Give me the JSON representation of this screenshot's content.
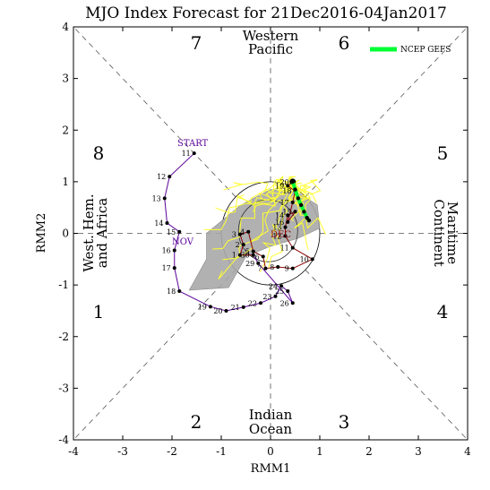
{
  "title": "MJO Index Forecast for 21Dec2016-04Jan2017",
  "xlabel": "RMM1",
  "ylabel": "RMM2",
  "phase_numbers": [
    "1",
    "2",
    "3",
    "4",
    "5",
    "6",
    "7",
    "8"
  ],
  "regions": {
    "top_line1": "Western",
    "top_line2": "Pacific",
    "bottom_line1": "Indian",
    "bottom_line2": "Ocean",
    "left_line1": "West. Hem.",
    "left_line2": "and Africa",
    "right_line1": "Maritime",
    "right_line2": "Continent"
  },
  "legend": {
    "label": "NCEP GEFS",
    "color": "#00ff33"
  },
  "month_labels": {
    "start": "START",
    "nov": "NOV",
    "dec": "DEC"
  },
  "colors": {
    "obs_nov": "#5a0099",
    "obs_dec": "#8b0000",
    "ensemble": "#ffff33",
    "spread": "#a9a9a9",
    "mean": "#00ff33"
  },
  "chart_data": {
    "type": "scatter",
    "xlim": [
      -4,
      4
    ],
    "ylim": [
      -4,
      4
    ],
    "xticks": [
      "-4",
      "-3",
      "-2",
      "-1",
      "0",
      "1",
      "2",
      "3",
      "4"
    ],
    "yticks": [
      "-4",
      "-3",
      "-2",
      "-1",
      "0",
      "1",
      "2",
      "3",
      "4"
    ],
    "unit_circle_radius": 1,
    "observed": [
      {
        "day": "11",
        "x": -1.55,
        "y": 1.55,
        "m": "nov"
      },
      {
        "day": "12",
        "x": -2.05,
        "y": 1.1,
        "m": "nov"
      },
      {
        "day": "13",
        "x": -2.15,
        "y": 0.68,
        "m": "nov"
      },
      {
        "day": "14",
        "x": -2.1,
        "y": 0.2,
        "m": "nov"
      },
      {
        "day": "15",
        "x": -1.85,
        "y": 0.03,
        "m": "nov"
      },
      {
        "day": "16",
        "x": -1.95,
        "y": -0.33,
        "m": "nov"
      },
      {
        "day": "17",
        "x": -1.95,
        "y": -0.67,
        "m": "nov"
      },
      {
        "day": "18",
        "x": -1.85,
        "y": -1.12,
        "m": "nov"
      },
      {
        "day": "19",
        "x": -1.22,
        "y": -1.42,
        "m": "nov"
      },
      {
        "day": "20",
        "x": -0.9,
        "y": -1.5,
        "m": "nov"
      },
      {
        "day": "21",
        "x": -0.55,
        "y": -1.43,
        "m": "nov"
      },
      {
        "day": "22",
        "x": -0.2,
        "y": -1.35,
        "m": "nov"
      },
      {
        "day": "23",
        "x": 0.1,
        "y": -1.22,
        "m": "nov"
      },
      {
        "day": "24",
        "x": 0.22,
        "y": -1.02,
        "m": "nov"
      },
      {
        "day": "25",
        "x": 0.35,
        "y": -1.12,
        "m": "nov"
      },
      {
        "day": "26",
        "x": 0.45,
        "y": -1.35,
        "m": "nov"
      },
      {
        "day": "29",
        "x": -0.25,
        "y": -0.58,
        "m": "nov"
      },
      {
        "day": "30",
        "x": -0.35,
        "y": -0.42,
        "m": "nov"
      },
      {
        "day": "1",
        "x": -0.62,
        "y": -0.42,
        "m": "dec"
      },
      {
        "day": "2",
        "x": -0.55,
        "y": -0.22,
        "m": "dec"
      },
      {
        "day": "3",
        "x": -0.62,
        "y": -0.02,
        "m": "dec"
      },
      {
        "day": "4",
        "x": -0.45,
        "y": 0.03,
        "m": "dec"
      },
      {
        "day": "5",
        "x": -0.35,
        "y": -0.35,
        "m": "dec"
      },
      {
        "day": "6",
        "x": -0.15,
        "y": -0.45,
        "m": "dec"
      },
      {
        "day": "7",
        "x": -0.1,
        "y": -0.68,
        "m": "dec"
      },
      {
        "day": "8",
        "x": 0.15,
        "y": -0.65,
        "m": "dec"
      },
      {
        "day": "9",
        "x": 0.45,
        "y": -0.68,
        "m": "dec"
      },
      {
        "day": "10",
        "x": 0.85,
        "y": -0.5,
        "m": "dec"
      },
      {
        "day": "11",
        "x": 0.45,
        "y": -0.28,
        "m": "dec"
      },
      {
        "day": "12",
        "x": 0.3,
        "y": -0.05,
        "m": "dec"
      },
      {
        "day": "13",
        "x": 0.3,
        "y": 0.12,
        "m": "dec"
      },
      {
        "day": "14",
        "x": 0.35,
        "y": 0.35,
        "m": "dec"
      },
      {
        "day": "15",
        "x": 0.5,
        "y": 0.42,
        "m": "dec"
      },
      {
        "day": "16",
        "x": 0.35,
        "y": 0.22,
        "m": "dec"
      },
      {
        "day": "17",
        "x": 0.45,
        "y": 0.6,
        "m": "dec"
      },
      {
        "day": "18",
        "x": 0.5,
        "y": 0.82,
        "m": "dec"
      },
      {
        "day": "19",
        "x": 0.35,
        "y": 0.92,
        "m": "dec"
      },
      {
        "day": "20",
        "x": 0.45,
        "y": 1.0,
        "m": "dec"
      }
    ],
    "ensemble_mean": [
      {
        "x": 0.45,
        "y": 1.0
      },
      {
        "x": 0.5,
        "y": 0.85
      },
      {
        "x": 0.56,
        "y": 0.68
      },
      {
        "x": 0.62,
        "y": 0.55
      },
      {
        "x": 0.68,
        "y": 0.42
      },
      {
        "x": 0.74,
        "y": 0.3
      },
      {
        "x": 0.78,
        "y": 0.25
      }
    ],
    "spread_polygon": [
      {
        "x": -1.3,
        "y": 0.0
      },
      {
        "x": -0.6,
        "y": 0.55
      },
      {
        "x": 0.0,
        "y": 0.85
      },
      {
        "x": 0.5,
        "y": 0.82
      },
      {
        "x": 0.95,
        "y": 0.55
      },
      {
        "x": 1.0,
        "y": 0.1
      },
      {
        "x": 0.55,
        "y": -0.1
      },
      {
        "x": 0.0,
        "y": -0.25
      },
      {
        "x": -0.5,
        "y": -0.45
      },
      {
        "x": -0.85,
        "y": -1.05
      },
      {
        "x": -1.65,
        "y": -1.1
      },
      {
        "x": -1.3,
        "y": -0.5
      }
    ]
  }
}
